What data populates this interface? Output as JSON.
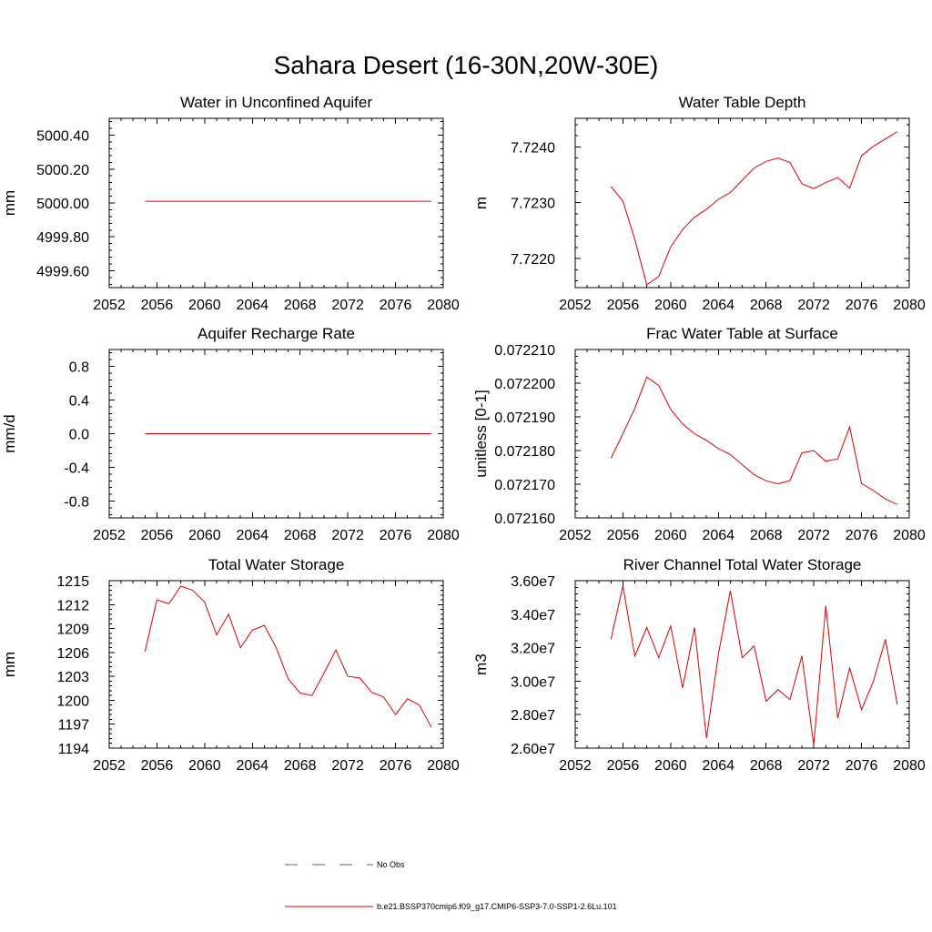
{
  "title": "Sahara Desert (16-30N,20W-30E)",
  "legend": [
    {
      "label": "No Obs",
      "color": "#4a5fb0",
      "dash": true
    },
    {
      "label": "b.e21.BSSP370cmip6.f09_g17.CMIP6-SSP3-7.0-SSP1-2.6Lu.101",
      "color": "#e00000",
      "dash": false
    }
  ],
  "chart_data": [
    {
      "type": "line",
      "title": "Water in Unconfined Aquifer",
      "ylabel": "mm",
      "xlim": [
        2052,
        2080
      ],
      "ylim": [
        4999.5,
        5000.5
      ],
      "xticks": [
        2052,
        2056,
        2060,
        2064,
        2068,
        2072,
        2076,
        2080
      ],
      "yticks": [
        4999.6,
        4999.8,
        5000.0,
        5000.2,
        5000.4
      ],
      "ytick_labels": [
        "4999.60",
        "4999.80",
        "5000.00",
        "5000.20",
        "5000.40"
      ],
      "x": [
        2055,
        2056,
        2057,
        2058,
        2059,
        2060,
        2061,
        2062,
        2063,
        2064,
        2065,
        2066,
        2067,
        2068,
        2069,
        2070,
        2071,
        2072,
        2073,
        2074,
        2075,
        2076,
        2077,
        2078,
        2079
      ],
      "series": [
        {
          "values": [
            5000.01,
            5000.01,
            5000.01,
            5000.01,
            5000.01,
            5000.01,
            5000.01,
            5000.01,
            5000.01,
            5000.01,
            5000.01,
            5000.01,
            5000.01,
            5000.01,
            5000.01,
            5000.01,
            5000.01,
            5000.01,
            5000.01,
            5000.01,
            5000.01,
            5000.01,
            5000.01,
            5000.01,
            5000.01
          ]
        }
      ]
    },
    {
      "type": "line",
      "title": "Water Table Depth",
      "ylabel": "m",
      "xlim": [
        2052,
        2080
      ],
      "ylim": [
        7.72148,
        7.72451
      ],
      "xticks": [
        2052,
        2056,
        2060,
        2064,
        2068,
        2072,
        2076,
        2080
      ],
      "yticks": [
        7.722,
        7.723,
        7.724
      ],
      "ytick_labels": [
        "7.7220",
        "7.7230",
        "7.7240"
      ],
      "x": [
        2055,
        2056,
        2057,
        2058,
        2059,
        2060,
        2061,
        2062,
        2063,
        2064,
        2065,
        2066,
        2067,
        2068,
        2069,
        2070,
        2071,
        2072,
        2073,
        2074,
        2075,
        2076,
        2077,
        2078,
        2079
      ],
      "series": [
        {
          "values": [
            7.72329,
            7.72303,
            7.72234,
            7.72153,
            7.72168,
            7.72221,
            7.72252,
            7.72274,
            7.72288,
            7.72306,
            7.72318,
            7.7234,
            7.72362,
            7.72374,
            7.7238,
            7.72372,
            7.72334,
            7.72325,
            7.72336,
            7.72345,
            7.72326,
            7.72384,
            7.72401,
            7.72414,
            7.72427
          ]
        }
      ]
    },
    {
      "type": "line",
      "title": "Aquifer Recharge Rate",
      "ylabel": "mm/d",
      "xlim": [
        2052,
        2080
      ],
      "ylim": [
        -1.0,
        1.0
      ],
      "xticks": [
        2052,
        2056,
        2060,
        2064,
        2068,
        2072,
        2076,
        2080
      ],
      "yticks": [
        -0.8,
        -0.4,
        0.0,
        0.4,
        0.8
      ],
      "ytick_labels": [
        "-0.8",
        "-0.4",
        "0.0",
        "0.4",
        "0.8"
      ],
      "x": [
        2055,
        2056,
        2057,
        2058,
        2059,
        2060,
        2061,
        2062,
        2063,
        2064,
        2065,
        2066,
        2067,
        2068,
        2069,
        2070,
        2071,
        2072,
        2073,
        2074,
        2075,
        2076,
        2077,
        2078,
        2079
      ],
      "series": [
        {
          "values": [
            0,
            0,
            0,
            0,
            0,
            0,
            0,
            0,
            0,
            0,
            0,
            0,
            0,
            0,
            0,
            0,
            0,
            0,
            0,
            0,
            0,
            0,
            0,
            0,
            0
          ]
        }
      ]
    },
    {
      "type": "line",
      "title": "Frac Water Table at Surface",
      "ylabel": "unitless [0-1]",
      "xlim": [
        2052,
        2080
      ],
      "ylim": [
        0.07216,
        0.07221
      ],
      "xticks": [
        2052,
        2056,
        2060,
        2064,
        2068,
        2072,
        2076,
        2080
      ],
      "yticks": [
        0.07216,
        0.07217,
        0.07218,
        0.07219,
        0.0722,
        0.07221
      ],
      "ytick_labels": [
        "0.072160",
        "0.072170",
        "0.072180",
        "0.072190",
        "0.072200",
        "0.072210"
      ],
      "x": [
        2055,
        2056,
        2057,
        2058,
        2059,
        2060,
        2061,
        2062,
        2063,
        2064,
        2065,
        2066,
        2067,
        2068,
        2069,
        2070,
        2071,
        2072,
        2073,
        2074,
        2075,
        2076,
        2077,
        2078,
        2079
      ],
      "series": [
        {
          "values": [
            0.0721777,
            0.072185,
            0.0721925,
            0.0722018,
            0.0721993,
            0.0721922,
            0.0721879,
            0.072185,
            0.072183,
            0.0721806,
            0.0721788,
            0.0721758,
            0.0721728,
            0.072171,
            0.0721701,
            0.0721711,
            0.0721793,
            0.07218,
            0.0721768,
            0.0721775,
            0.072187,
            0.0721702,
            0.0721681,
            0.0721656,
            0.072164
          ]
        }
      ]
    },
    {
      "type": "line",
      "title": "Total Water Storage",
      "ylabel": "mm",
      "xlim": [
        2052,
        2080
      ],
      "ylim": [
        1194,
        1215
      ],
      "xticks": [
        2052,
        2056,
        2060,
        2064,
        2068,
        2072,
        2076,
        2080
      ],
      "yticks": [
        1194,
        1197,
        1200,
        1203,
        1206,
        1209,
        1212,
        1215
      ],
      "ytick_labels": [
        "1194",
        "1197",
        "1200",
        "1203",
        "1206",
        "1209",
        "1212",
        "1215"
      ],
      "x": [
        2055,
        2056,
        2057,
        2058,
        2059,
        2060,
        2061,
        2062,
        2063,
        2064,
        2065,
        2066,
        2067,
        2068,
        2069,
        2070,
        2071,
        2072,
        2073,
        2074,
        2075,
        2076,
        2077,
        2078,
        2079
      ],
      "series": [
        {
          "values": [
            1206.1,
            1212.6,
            1212.1,
            1214.3,
            1213.8,
            1212.3,
            1208.2,
            1210.8,
            1206.6,
            1208.8,
            1209.4,
            1206.6,
            1202.7,
            1200.9,
            1200.6,
            1203.4,
            1206.3,
            1203.0,
            1202.8,
            1201.0,
            1200.4,
            1198.2,
            1200.2,
            1199.4,
            1196.6
          ]
        }
      ]
    },
    {
      "type": "line",
      "title": "River Channel Total Water Storage",
      "ylabel": "m3",
      "xlim": [
        2052,
        2080
      ],
      "ylim": [
        26000000,
        36000000
      ],
      "xticks": [
        2052,
        2056,
        2060,
        2064,
        2068,
        2072,
        2076,
        2080
      ],
      "yticks": [
        26000000,
        28000000,
        30000000,
        32000000,
        34000000,
        36000000
      ],
      "ytick_labels": [
        "2.60e7",
        "2.80e7",
        "3.00e7",
        "3.20e7",
        "3.40e7",
        "3.60e7"
      ],
      "x": [
        2055,
        2056,
        2057,
        2058,
        2059,
        2060,
        2061,
        2062,
        2063,
        2064,
        2065,
        2066,
        2067,
        2068,
        2069,
        2070,
        2071,
        2072,
        2073,
        2074,
        2075,
        2076,
        2077,
        2078,
        2079
      ],
      "series": [
        {
          "values": [
            32500000,
            35700000,
            31500000,
            33200000,
            31400000,
            33300000,
            29600000,
            33200000,
            26600000,
            31600000,
            35400000,
            31400000,
            32100000,
            28800000,
            29500000,
            28900000,
            31500000,
            26200000,
            34500000,
            27800000,
            30800000,
            28300000,
            30000000,
            32500000,
            28600000
          ]
        }
      ]
    }
  ]
}
